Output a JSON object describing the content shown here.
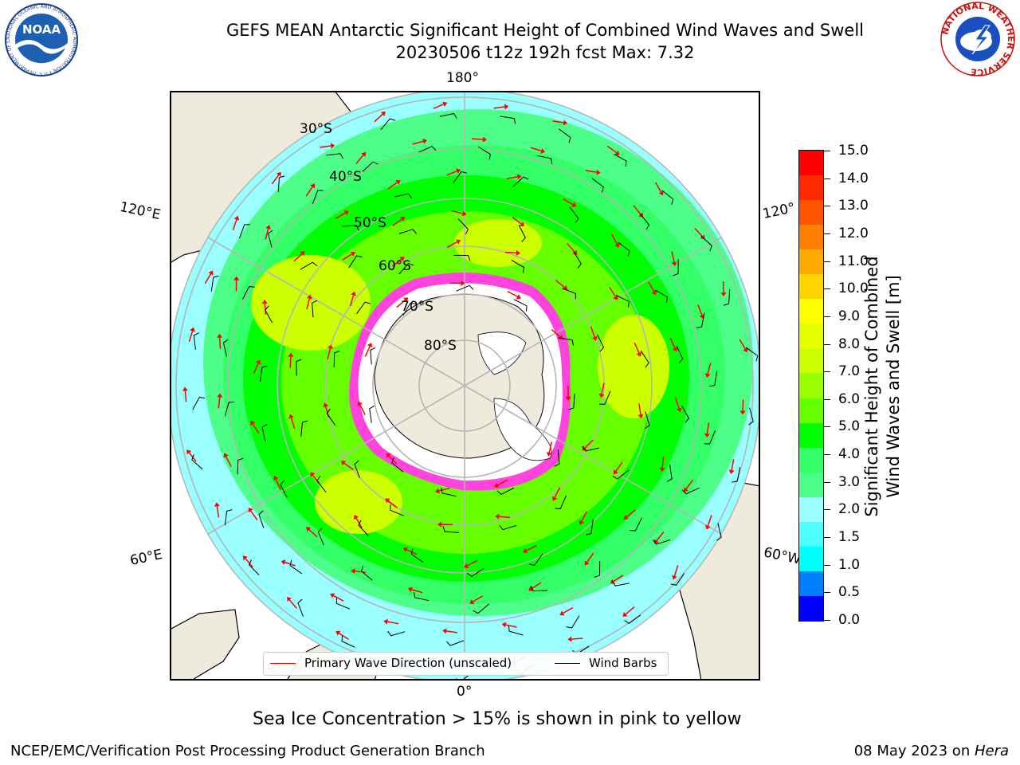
{
  "title": {
    "line1": "GEFS MEAN Antarctic Significant Height of Combined Wind Waves and Swell",
    "line2": "20230506 t12z 192h fcst   Max: 7.32"
  },
  "map": {
    "longitude_labels": [
      "180°",
      "120°E",
      "120°",
      "60°E",
      "60°W",
      "0°"
    ],
    "latitude_labels": [
      "30°S",
      "40°S",
      "50°S",
      "60°S",
      "70°S",
      "80°S"
    ]
  },
  "colorbar": {
    "title_line1": "Significant Height of Combined",
    "title_line2": "Wind Waves and Swell [m]",
    "ticks": [
      "15.0",
      "14.0",
      "13.0",
      "12.0",
      "11.0",
      "10.0",
      "9.0",
      "8.0",
      "7.0",
      "6.0",
      "5.0",
      "4.0",
      "3.0",
      "2.0",
      "1.5",
      "1.0",
      "0.5",
      "0.0"
    ],
    "colors": [
      "#ff0000",
      "#ff2a00",
      "#ff5500",
      "#ff8000",
      "#ffaa00",
      "#ffd400",
      "#ffff00",
      "#e6ff00",
      "#ccff00",
      "#99ff00",
      "#66ff00",
      "#00ff00",
      "#33ff66",
      "#4dff88",
      "#99ffff",
      "#4dffff",
      "#00ffff",
      "#0080ff",
      "#0000ff"
    ]
  },
  "legend": {
    "wave_label": "Primary Wave Direction (unscaled)",
    "barb_label": "Wind Barbs",
    "wave_color": "#ff0000",
    "barb_color": "#000000"
  },
  "note": "Sea Ice Concentration > 15% is shown in pink to yellow",
  "footer": {
    "left": "NCEP/EMC/Verification Post Processing Product Generation Branch",
    "date": "08 May 2023 on ",
    "machine": "Hera"
  },
  "logos": {
    "noaa_text": "NOAA",
    "noaa_ring_text": "NATIONAL OCEANIC AND ATMOSPHERIC ADMINISTRATION • U.S. DEPARTMENT OF COMMERCE",
    "nws_ring_text": "NATIONAL WEATHER SERVICE"
  }
}
